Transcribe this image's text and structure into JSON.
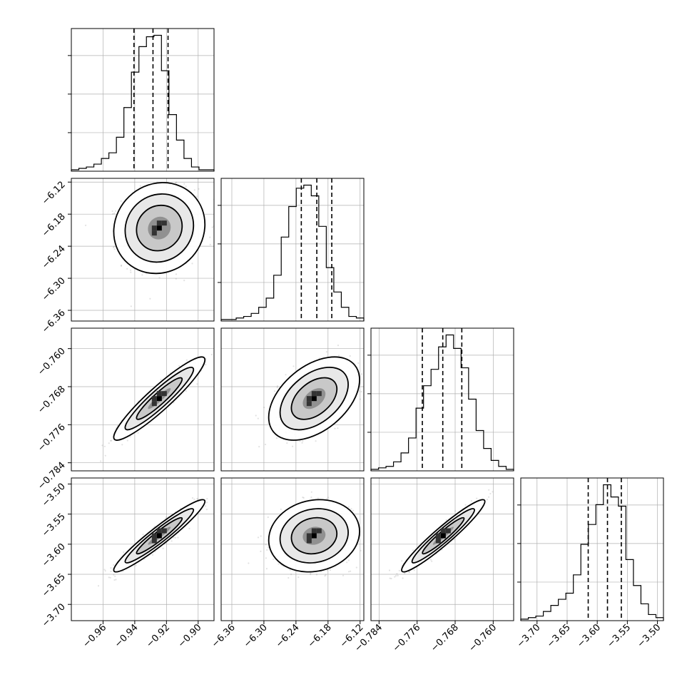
{
  "chart_data": {
    "type": "corner",
    "grid": true,
    "parameters": [
      {
        "index": 0,
        "range": [
          -0.98,
          -0.89
        ],
        "ticks": [
          -0.96,
          -0.94,
          -0.92,
          -0.9
        ],
        "tick_labels": [
          "−0.96",
          "−0.94",
          "−0.92",
          "−0.90"
        ],
        "quantiles": [
          -0.9405,
          -0.9285,
          -0.919
        ],
        "histogram": [
          1,
          2,
          3,
          5,
          9,
          13,
          24,
          45,
          70,
          88,
          95,
          96,
          71,
          40,
          22,
          9,
          3,
          1,
          1
        ]
      },
      {
        "index": 1,
        "range": [
          -6.38,
          -6.113
        ],
        "ticks": [
          -6.36,
          -6.3,
          -6.24,
          -6.18,
          -6.12
        ],
        "tick_labels": [
          "−6.36",
          "−6.30",
          "−6.24",
          "−6.18",
          "−6.12"
        ],
        "quantiles": [
          -6.23,
          -6.201,
          -6.173
        ],
        "histogram": [
          1,
          1,
          2,
          3,
          5,
          9,
          15,
          30,
          55,
          75,
          87,
          89,
          82,
          62,
          35,
          19,
          9,
          3,
          2
        ]
      },
      {
        "index": 2,
        "range": [
          -0.7857,
          -0.7557
        ],
        "ticks": [
          -0.784,
          -0.776,
          -0.768,
          -0.76
        ],
        "tick_labels": [
          "−0.784",
          "−0.776",
          "−0.768",
          "−0.760"
        ],
        "quantiles": [
          -0.7749,
          -0.7706,
          -0.7666
        ],
        "histogram": [
          1,
          2,
          3,
          6,
          12,
          22,
          42,
          57,
          68,
          83,
          91,
          82,
          69,
          48,
          27,
          15,
          7,
          3,
          1
        ]
      },
      {
        "index": 3,
        "range": [
          -3.727,
          -3.49
        ],
        "ticks": [
          -3.7,
          -3.65,
          -3.6,
          -3.55,
          -3.5
        ],
        "tick_labels": [
          "−3.70",
          "−3.65",
          "−3.60",
          "−3.55",
          "−3.50"
        ],
        "quantiles": [
          -3.615,
          -3.583,
          -3.56
        ],
        "histogram": [
          1,
          2,
          3,
          6,
          10,
          14,
          18,
          30,
          50,
          63,
          76,
          89,
          81,
          75,
          40,
          23,
          11,
          4,
          2
        ]
      }
    ],
    "y_axis_ticks": {
      "1": {
        "ticks": [
          -6.36,
          -6.3,
          -6.24,
          -6.18,
          -6.12
        ],
        "tick_labels": [
          "−6.36",
          "−6.30",
          "−6.24",
          "−6.18",
          "−6.12"
        ]
      },
      "2": {
        "ticks": [
          -0.784,
          -0.776,
          -0.768,
          -0.76
        ],
        "tick_labels": [
          "−0.784",
          "−0.776",
          "−0.768",
          "−0.760"
        ]
      },
      "3": {
        "ticks": [
          -3.7,
          -3.65,
          -3.6,
          -3.55,
          -3.5
        ],
        "tick_labels": [
          "−3.70",
          "−3.65",
          "−3.60",
          "−3.55",
          "−3.50"
        ]
      }
    },
    "pairs": [
      {
        "row": 1,
        "col": 0,
        "mean": [
          -0.9245,
          -6.206
        ],
        "std": [
          0.0115,
          0.034
        ],
        "correlation": 0.08
      },
      {
        "row": 2,
        "col": 0,
        "mean": [
          -0.9245,
          -0.7705
        ],
        "std": [
          0.0115,
          0.0035
        ],
        "correlation": 0.93
      },
      {
        "row": 2,
        "col": 1,
        "mean": [
          -6.206,
          -0.7705
        ],
        "std": [
          0.034,
          0.0035
        ],
        "correlation": 0.45
      },
      {
        "row": 3,
        "col": 0,
        "mean": [
          -0.9245,
          -3.586
        ],
        "std": [
          0.0115,
          0.024
        ],
        "correlation": 0.95
      },
      {
        "row": 3,
        "col": 1,
        "mean": [
          -6.206,
          -3.586
        ],
        "std": [
          0.034,
          0.024
        ],
        "correlation": 0.12
      },
      {
        "row": 3,
        "col": 2,
        "mean": [
          -0.7705,
          -3.586
        ],
        "std": [
          0.0035,
          0.024
        ],
        "correlation": 0.95
      }
    ],
    "contour_levels_sigma": [
      0.5,
      1.0,
      1.5,
      2.0
    ]
  }
}
